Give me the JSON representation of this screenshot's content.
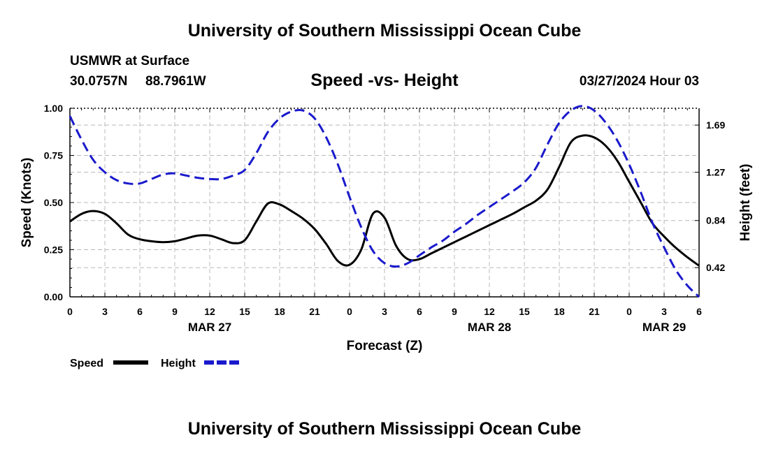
{
  "page": {
    "title_top": "University of Southern Mississippi Ocean Cube",
    "title_bottom": "University of Southern Mississippi Ocean Cube",
    "station": "USMWR at Surface",
    "lat": "30.0757N",
    "lon": "88.7961W",
    "datetime": "03/27/2024 Hour 03"
  },
  "chart_data": {
    "type": "line",
    "title": "Speed -vs- Height",
    "xlabel": "Forecast (Z)",
    "ylabel": "Speed (Knots)",
    "y2label": "Height (feet)",
    "x": [
      0,
      1,
      2,
      3,
      4,
      5,
      6,
      7,
      8,
      9,
      10,
      11,
      12,
      13,
      14,
      15,
      16,
      17,
      18,
      19,
      20,
      21,
      22,
      23,
      24,
      25,
      26,
      27,
      28,
      29,
      30,
      31,
      32,
      33,
      34,
      35,
      36,
      37,
      38,
      39,
      40,
      41,
      42,
      43,
      44,
      45,
      46,
      47,
      48,
      49,
      50,
      51,
      52,
      53,
      54
    ],
    "xlim": [
      0,
      54
    ],
    "xticks": [
      "0",
      "3",
      "6",
      "9",
      "12",
      "15",
      "18",
      "21",
      "0",
      "3",
      "6",
      "9",
      "12",
      "15",
      "18",
      "21",
      "0",
      "3",
      "6"
    ],
    "date_labels": [
      {
        "label": "MAR 27",
        "at": 12
      },
      {
        "label": "MAR 28",
        "at": 36
      },
      {
        "label": "MAR 29",
        "at": 51
      }
    ],
    "ylim": [
      0,
      1
    ],
    "yticks": [
      "0.00",
      "0.25",
      "0.50",
      "0.75",
      "1.00"
    ],
    "y2ticks": [
      "0.42",
      "0.84",
      "1.27",
      "1.69"
    ],
    "y2lim": [
      0.16,
      1.84
    ],
    "series": [
      {
        "name": "Speed",
        "axis": "left",
        "color": "#000000",
        "dash": "solid",
        "values": [
          0.4,
          0.44,
          0.455,
          0.44,
          0.39,
          0.33,
          0.305,
          0.295,
          0.29,
          0.295,
          0.31,
          0.325,
          0.325,
          0.305,
          0.285,
          0.3,
          0.4,
          0.495,
          0.49,
          0.455,
          0.415,
          0.36,
          0.28,
          0.19,
          0.17,
          0.25,
          0.44,
          0.42,
          0.27,
          0.2,
          0.2,
          0.23,
          0.26,
          0.29,
          0.32,
          0.35,
          0.38,
          0.41,
          0.44,
          0.475,
          0.51,
          0.57,
          0.69,
          0.82,
          0.855,
          0.845,
          0.8,
          0.72,
          0.61,
          0.5,
          0.39,
          0.32,
          0.26,
          0.21,
          0.165
        ]
      },
      {
        "name": "Height",
        "axis": "right",
        "color": "#1a1acc",
        "dash": "dashed",
        "values": [
          1.77,
          1.56,
          1.38,
          1.27,
          1.2,
          1.17,
          1.17,
          1.21,
          1.25,
          1.26,
          1.24,
          1.22,
          1.21,
          1.21,
          1.24,
          1.29,
          1.44,
          1.63,
          1.75,
          1.81,
          1.82,
          1.75,
          1.58,
          1.34,
          1.05,
          0.78,
          0.57,
          0.46,
          0.43,
          0.46,
          0.53,
          0.6,
          0.66,
          0.74,
          0.81,
          0.89,
          0.96,
          1.03,
          1.1,
          1.18,
          1.31,
          1.52,
          1.71,
          1.82,
          1.86,
          1.82,
          1.71,
          1.55,
          1.34,
          1.09,
          0.82,
          0.6,
          0.4,
          0.26,
          0.16
        ]
      }
    ],
    "legend": [
      "Speed",
      "Height"
    ]
  }
}
